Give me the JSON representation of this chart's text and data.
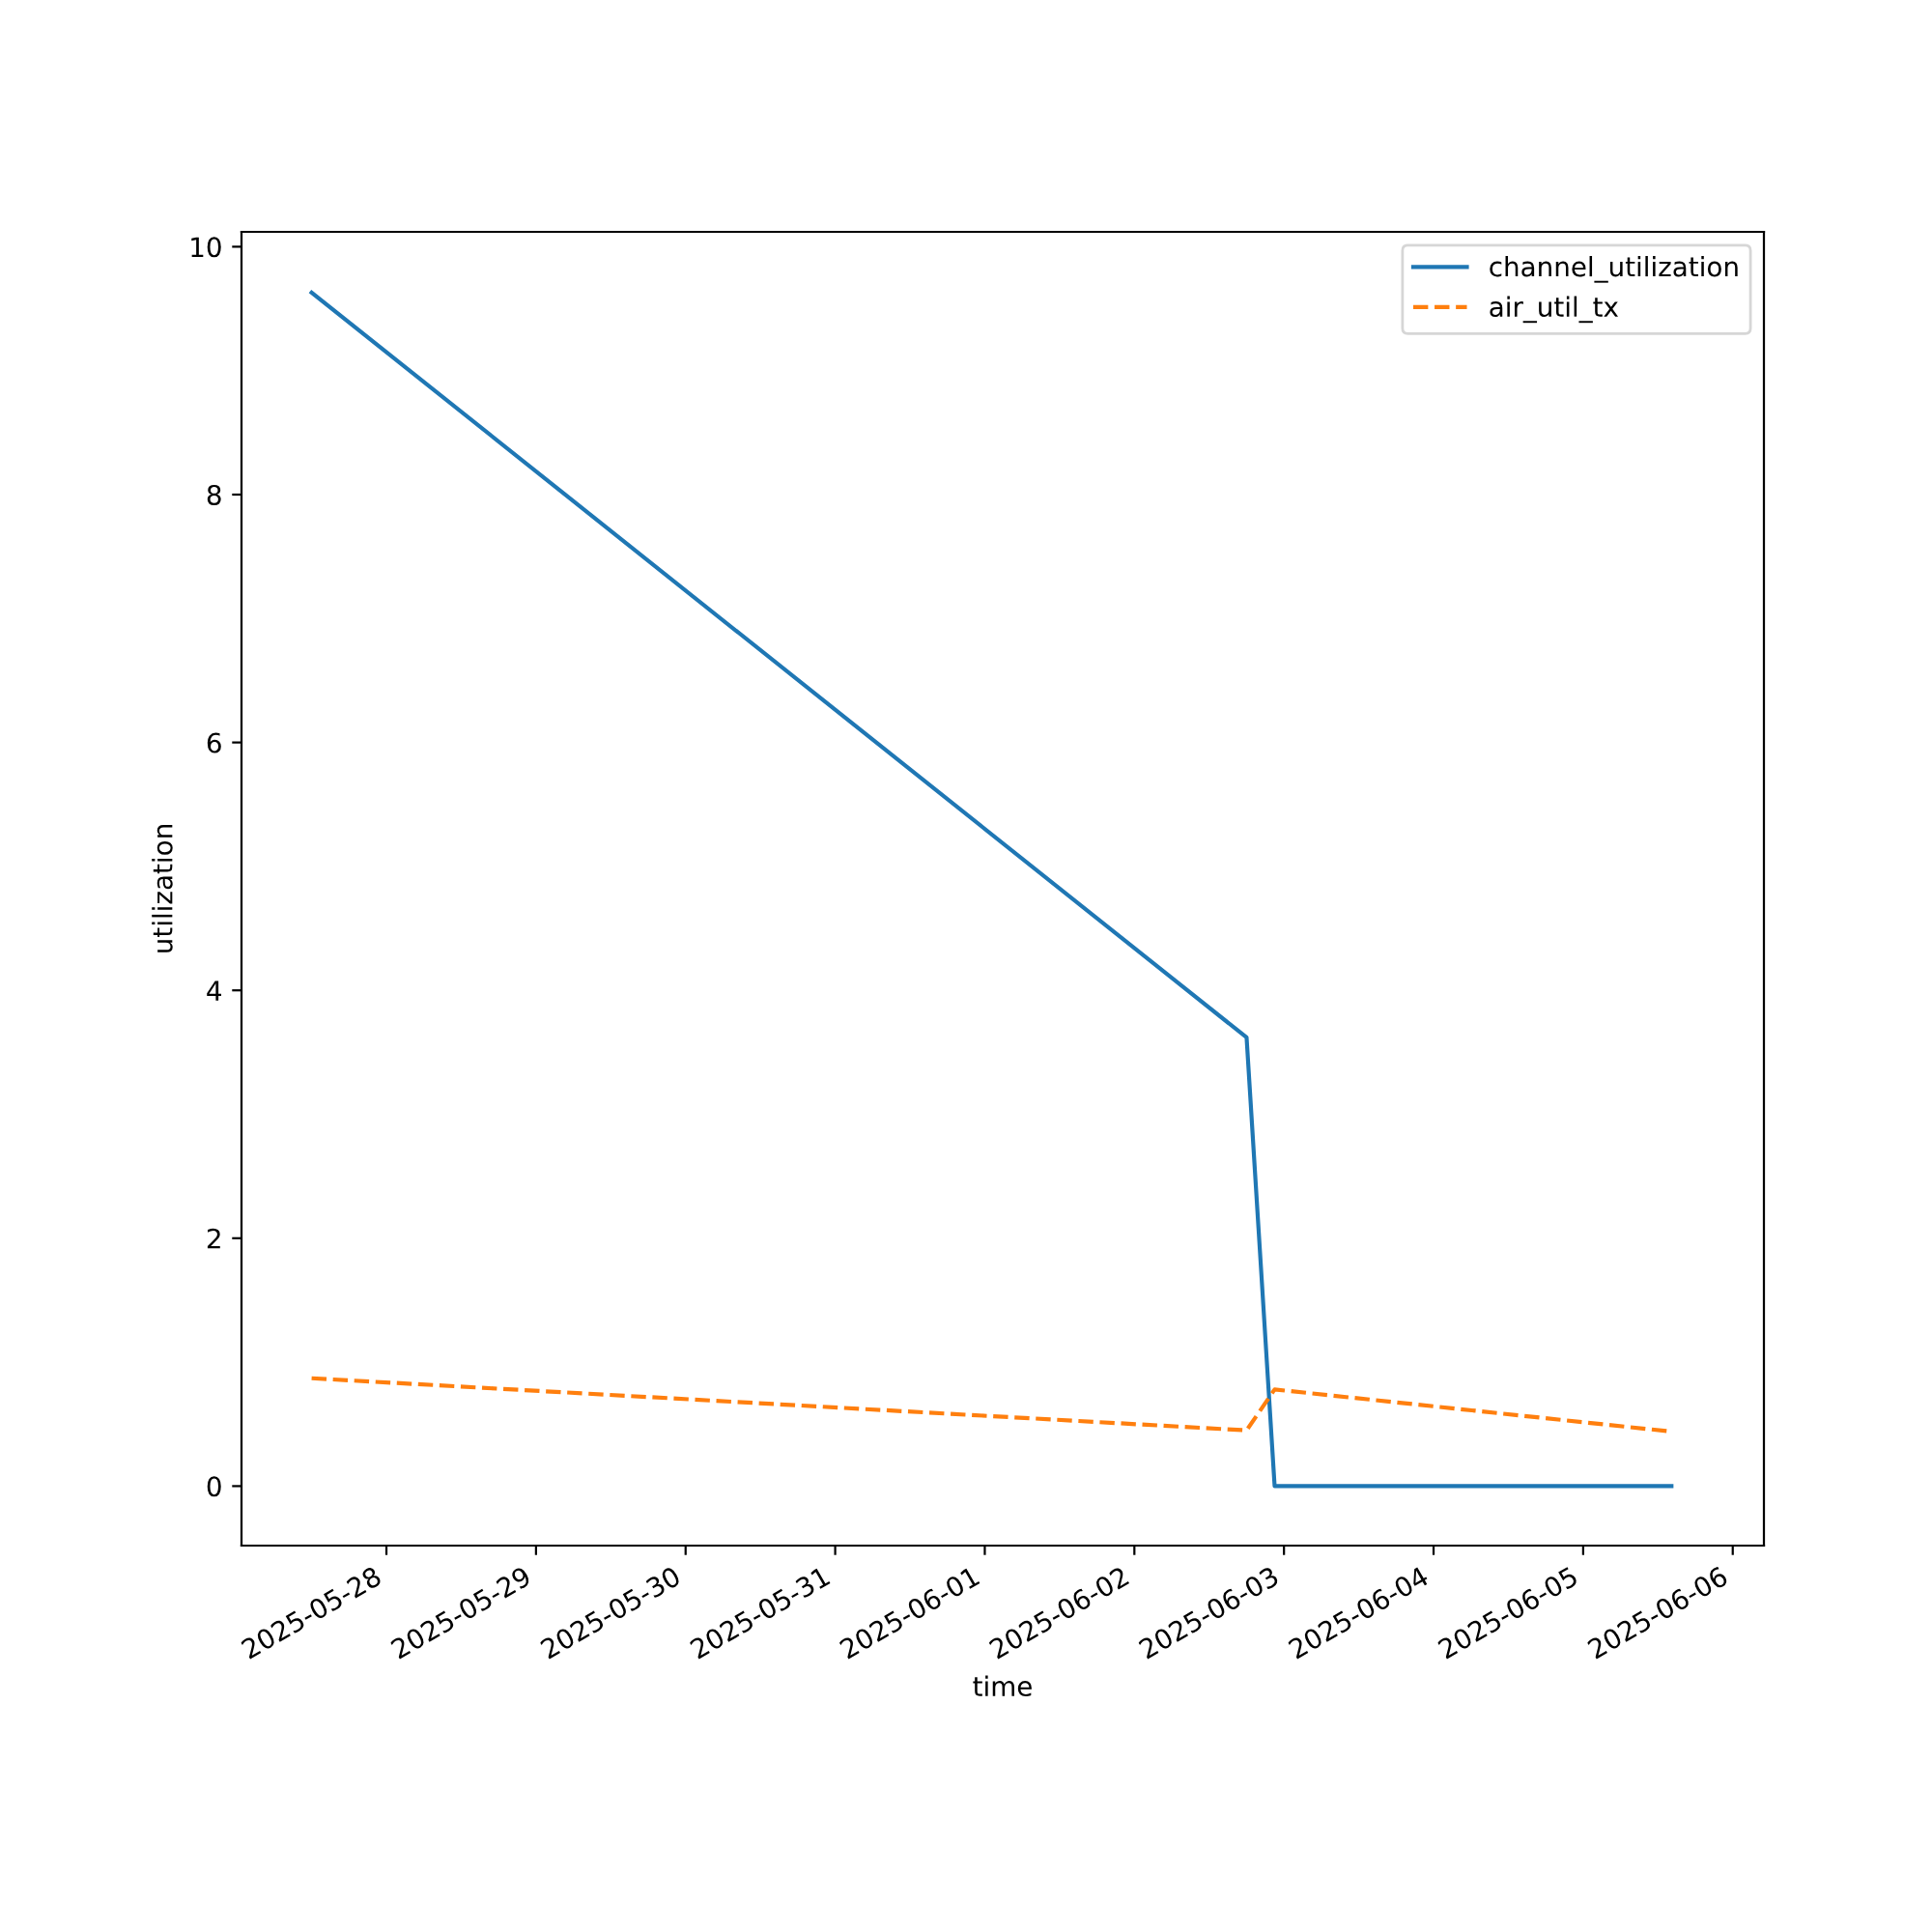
{
  "chart_data": {
    "type": "line",
    "xlabel": "time",
    "ylabel": "utilization",
    "x": [
      "2025-05-27T12:00",
      "2025-06-02T18:00",
      "2025-06-02T22:30",
      "2025-06-05T14:10"
    ],
    "series": [
      {
        "name": "channel_utilization",
        "color": "#1f77b4",
        "values": [
          9.63,
          3.62,
          0.0,
          0.0
        ],
        "line_style": "solid"
      },
      {
        "name": "air_util_tx",
        "color": "#ff7f0e",
        "values": [
          0.87,
          0.45,
          0.78,
          0.44
        ],
        "line_style": "dashed"
      }
    ],
    "xlim": [
      "2025-05-27T00:45",
      "2025-06-06T05:00"
    ],
    "xticks": [
      "2025-05-28",
      "2025-05-29",
      "2025-05-30",
      "2025-05-31",
      "2025-06-01",
      "2025-06-02",
      "2025-06-03",
      "2025-06-04",
      "2025-06-05",
      "2025-06-06"
    ],
    "ylim": [
      -0.48,
      10.12
    ],
    "yticks": [
      0,
      2,
      4,
      6,
      8,
      10
    ],
    "grid": false,
    "legend": "top right",
    "marker": "none"
  }
}
